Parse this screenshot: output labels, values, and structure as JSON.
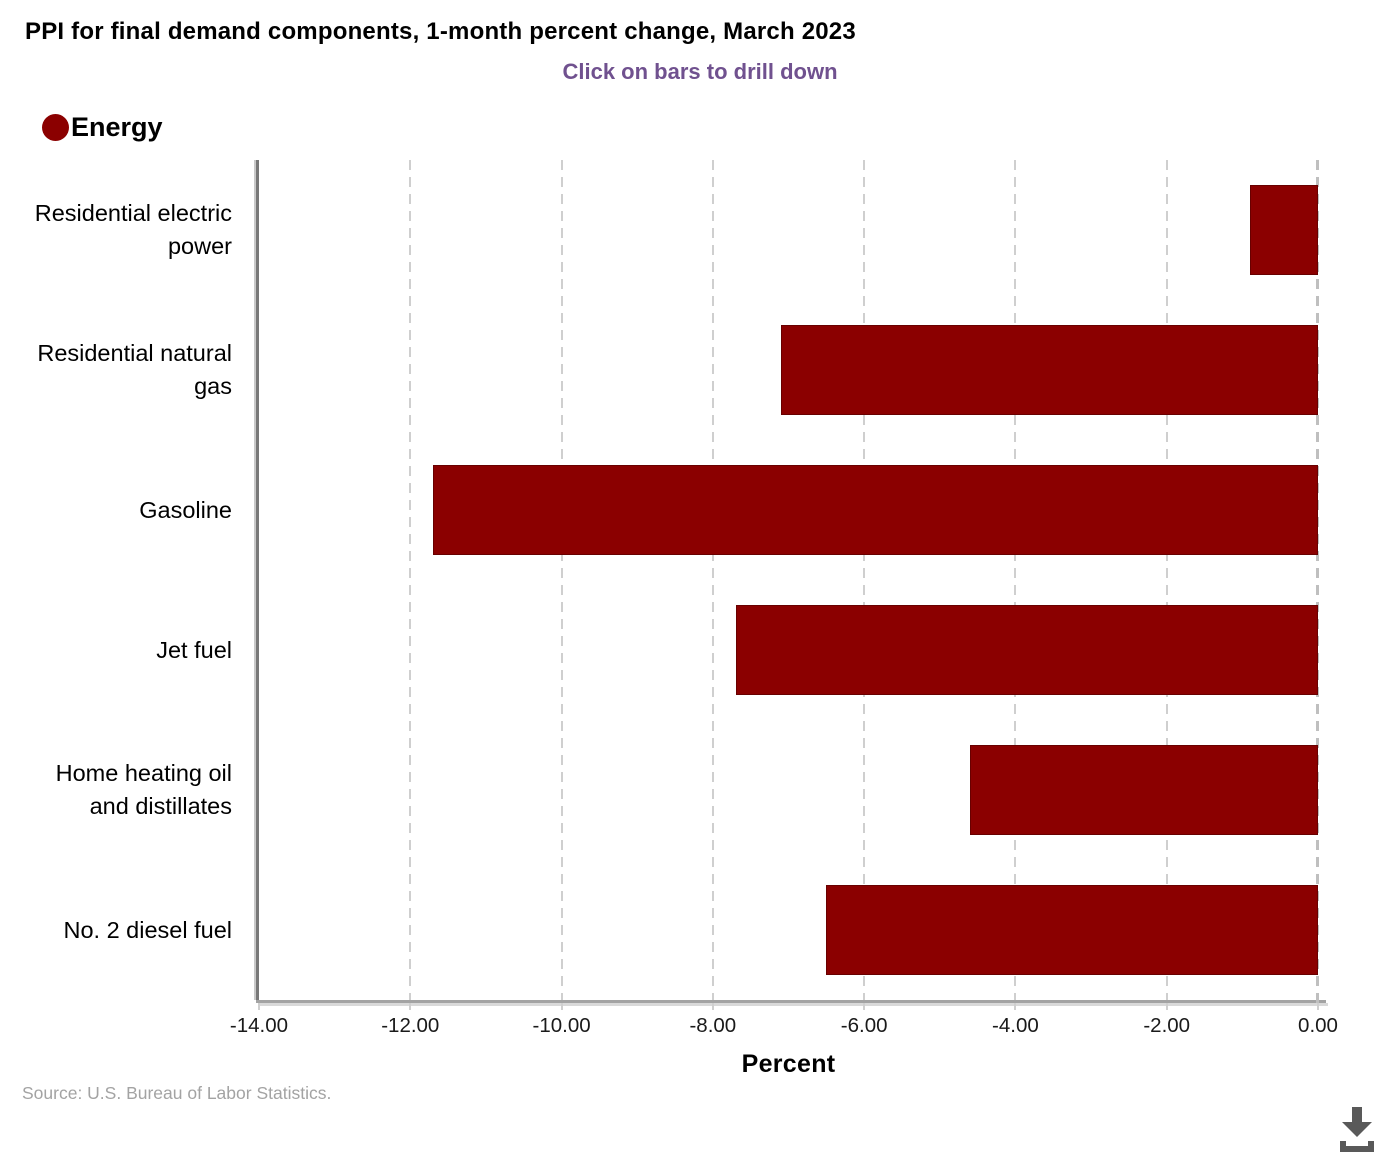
{
  "title": "PPI for final demand components, 1-month percent change, March 2023",
  "subtitle": "Click on bars to drill down",
  "legend": {
    "label": "Energy",
    "color": "#8b0000"
  },
  "source": "Source: U.S. Bureau of Labor Statistics.",
  "chart_data": {
    "type": "bar",
    "orientation": "horizontal",
    "series_name": "Energy",
    "categories": [
      "Residential electric power",
      "Residential natural gas",
      "Gasoline",
      "Jet fuel",
      "Home heating oil and distillates",
      "No. 2 diesel fuel"
    ],
    "values": [
      -0.9,
      -7.1,
      -11.7,
      -7.7,
      -4.6,
      -6.5
    ],
    "bar_color": "#8b0000",
    "xlabel": "Percent",
    "xlim": [
      -14,
      0
    ],
    "xtick_labels": [
      "-14.00",
      "-12.00",
      "-10.00",
      "-8.00",
      "-6.00",
      "-4.00",
      "-2.00",
      "0.00"
    ],
    "grid": "vertical-dashed",
    "legend_position": "top-left"
  }
}
